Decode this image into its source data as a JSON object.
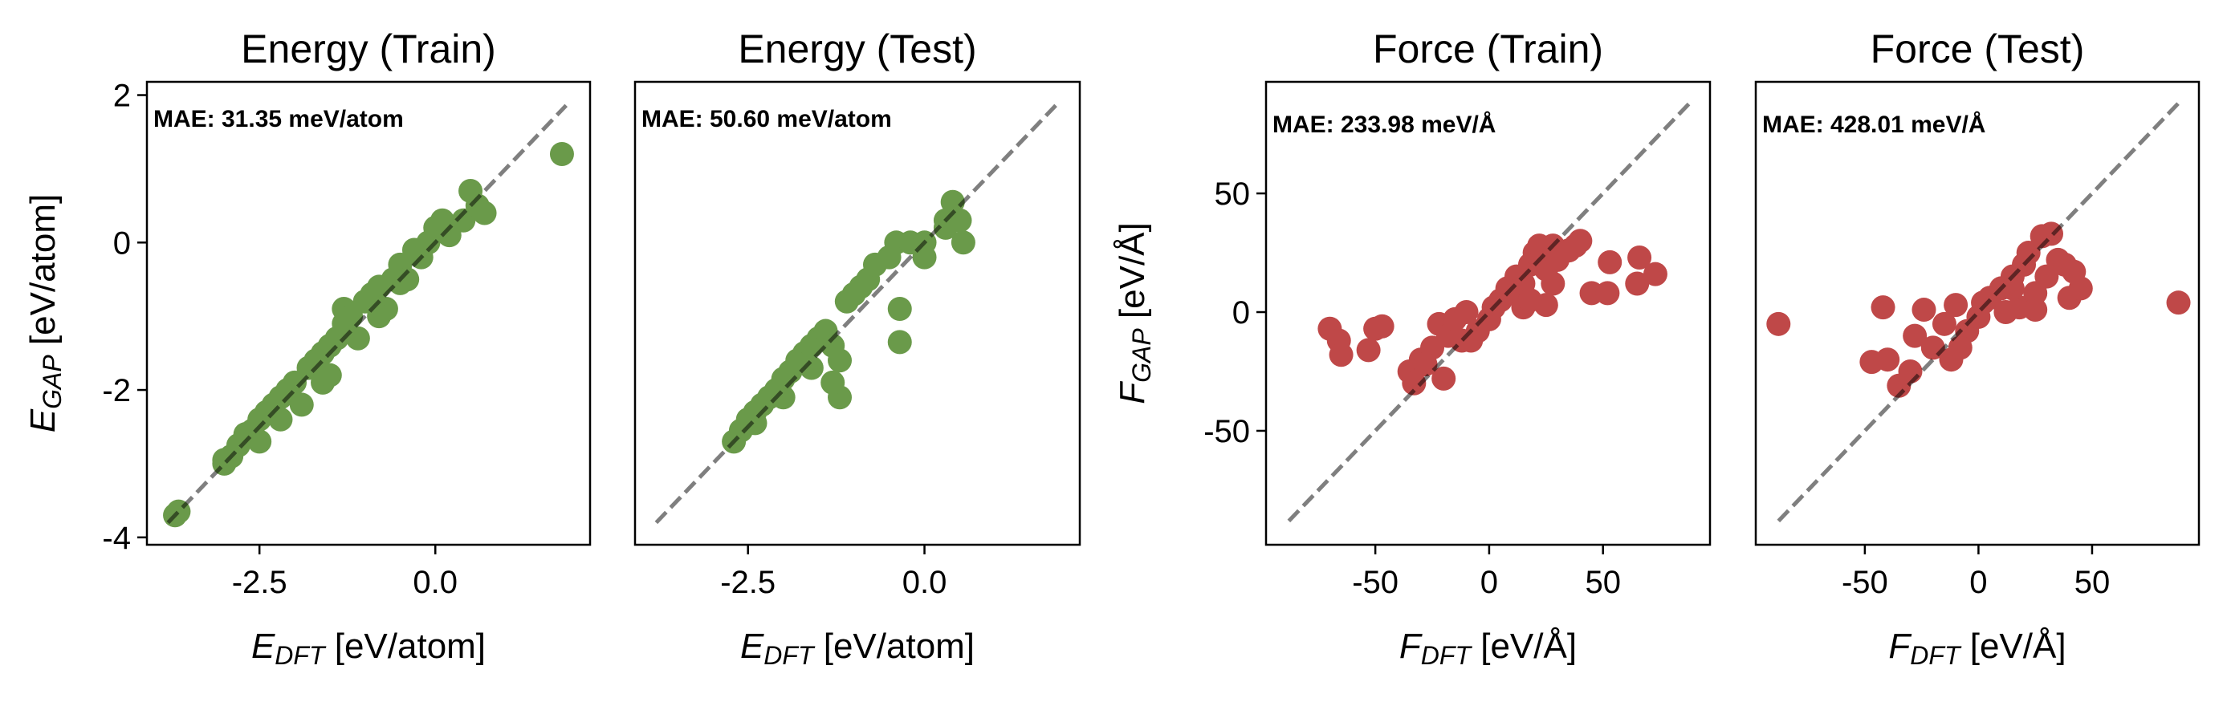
{
  "chart_data": [
    {
      "type": "scatter",
      "title": "Energy (Train)",
      "annotation": "MAE: 31.35 meV/atom",
      "xlabel": {
        "symbol": "E",
        "sub": "DFT",
        "unit": " [eV/atom]"
      },
      "ylabel": {
        "symbol": "E",
        "sub": "GAP",
        "unit": " [eV/atom]"
      },
      "xlim": [
        -4.1,
        2.2
      ],
      "ylim": [
        -4.1,
        2.18
      ],
      "xticks": [
        -2.5,
        0.0
      ],
      "xtick_labels": [
        "-2.5",
        "0.0"
      ],
      "yticks": [
        2,
        0,
        -2,
        -4
      ],
      "ytick_labels": [
        "2",
        "0",
        "-2",
        "-4"
      ],
      "show_yticks": true,
      "diagonal": [
        -3.8,
        1.86
      ],
      "color": "#6a9a4a",
      "points": [
        [
          -3.7,
          -3.7
        ],
        [
          -3.65,
          -3.65
        ],
        [
          -3.0,
          -3.0
        ],
        [
          -2.9,
          -2.9
        ],
        [
          -2.8,
          -2.75
        ],
        [
          -2.7,
          -2.6
        ],
        [
          -2.6,
          -2.55
        ],
        [
          -2.5,
          -2.4
        ],
        [
          -2.4,
          -2.3
        ],
        [
          -2.3,
          -2.2
        ],
        [
          -2.2,
          -2.1
        ],
        [
          -2.1,
          -2.0
        ],
        [
          -2.0,
          -1.9
        ],
        [
          -1.9,
          -2.2
        ],
        [
          -2.2,
          -2.4
        ],
        [
          -1.8,
          -1.7
        ],
        [
          -1.7,
          -1.6
        ],
        [
          -1.6,
          -1.5
        ],
        [
          -1.6,
          -1.9
        ],
        [
          -1.5,
          -1.4
        ],
        [
          -1.4,
          -1.3
        ],
        [
          -1.3,
          -1.1
        ],
        [
          -1.3,
          -0.9
        ],
        [
          -1.2,
          -1.0
        ],
        [
          -1.1,
          -1.3
        ],
        [
          -1.0,
          -0.8
        ],
        [
          -0.9,
          -0.7
        ],
        [
          -0.8,
          -0.6
        ],
        [
          -0.7,
          -0.9
        ],
        [
          -0.6,
          -0.5
        ],
        [
          -0.5,
          -0.3
        ],
        [
          -0.4,
          -0.5
        ],
        [
          -0.3,
          -0.1
        ],
        [
          -0.2,
          -0.2
        ],
        [
          -0.1,
          0.0
        ],
        [
          0.0,
          0.2
        ],
        [
          0.1,
          0.3
        ],
        [
          0.2,
          0.1
        ],
        [
          0.4,
          0.3
        ],
        [
          0.5,
          0.7
        ],
        [
          0.6,
          0.5
        ],
        [
          0.7,
          0.4
        ],
        [
          1.8,
          1.2
        ],
        [
          -3.0,
          -2.95
        ],
        [
          -1.5,
          -1.8
        ],
        [
          -2.5,
          -2.7
        ],
        [
          -0.8,
          -1.0
        ],
        [
          -0.5,
          -0.55
        ]
      ]
    },
    {
      "type": "scatter",
      "title": "Energy (Test)",
      "annotation": "MAE: 50.60 meV/atom",
      "xlabel": {
        "symbol": "E",
        "sub": "DFT",
        "unit": " [eV/atom]"
      },
      "xlim": [
        -4.1,
        2.2
      ],
      "ylim": [
        -4.1,
        2.18
      ],
      "xticks": [
        -2.5,
        0.0
      ],
      "xtick_labels": [
        "-2.5",
        "0.0"
      ],
      "yticks": [],
      "ytick_labels": [],
      "show_yticks": false,
      "diagonal": [
        -3.8,
        1.86
      ],
      "color": "#6a9a4a",
      "points": [
        [
          -2.7,
          -2.7
        ],
        [
          -2.6,
          -2.55
        ],
        [
          -2.5,
          -2.4
        ],
        [
          -2.4,
          -2.3
        ],
        [
          -2.3,
          -2.2
        ],
        [
          -2.2,
          -2.1
        ],
        [
          -2.1,
          -2.0
        ],
        [
          -2.0,
          -1.85
        ],
        [
          -1.9,
          -1.75
        ],
        [
          -1.8,
          -1.6
        ],
        [
          -1.7,
          -1.5
        ],
        [
          -1.6,
          -1.4
        ],
        [
          -1.5,
          -1.3
        ],
        [
          -1.4,
          -1.2
        ],
        [
          -1.3,
          -1.4
        ],
        [
          -1.2,
          -1.6
        ],
        [
          -1.2,
          -2.1
        ],
        [
          -1.3,
          -1.9
        ],
        [
          -1.1,
          -0.8
        ],
        [
          -1.0,
          -0.7
        ],
        [
          -0.9,
          -0.6
        ],
        [
          -0.8,
          -0.5
        ],
        [
          -0.7,
          -0.3
        ],
        [
          -0.5,
          -0.2
        ],
        [
          -0.35,
          -0.9
        ],
        [
          -0.35,
          -1.35
        ],
        [
          -0.4,
          0.0
        ],
        [
          -0.2,
          0.0
        ],
        [
          0.0,
          0.0
        ],
        [
          0.0,
          -0.2
        ],
        [
          0.3,
          0.3
        ],
        [
          0.4,
          0.55
        ],
        [
          0.5,
          0.3
        ],
        [
          0.55,
          0.0
        ],
        [
          0.3,
          0.2
        ],
        [
          -2.0,
          -2.1
        ],
        [
          -1.6,
          -1.7
        ],
        [
          -2.4,
          -2.45
        ]
      ]
    },
    {
      "type": "scatter",
      "title": "Force (Train)",
      "annotation": "MAE: 233.98 meV/Å",
      "xlabel": {
        "symbol": "F",
        "sub": "DFT",
        "unit": " [eV/Å]"
      },
      "ylabel": {
        "symbol": "F",
        "sub": "GAP",
        "unit": " [eV/Å]"
      },
      "xlim": [
        -98,
        97
      ],
      "ylim": [
        -98,
        97
      ],
      "xticks": [
        -50,
        0,
        50
      ],
      "xtick_labels": [
        "-50",
        "0",
        "50"
      ],
      "yticks": [
        50,
        0,
        -50
      ],
      "ytick_labels": [
        "50",
        "0",
        "-50"
      ],
      "show_yticks": true,
      "diagonal": [
        -88,
        88
      ],
      "color": "#bf4848",
      "points": [
        [
          -70,
          -7
        ],
        [
          -66,
          -12
        ],
        [
          -65,
          -18
        ],
        [
          -53,
          -16
        ],
        [
          -50,
          -7
        ],
        [
          -47,
          -6
        ],
        [
          -35,
          -25
        ],
        [
          -33,
          -30
        ],
        [
          -30,
          -20
        ],
        [
          -25,
          -15
        ],
        [
          -22,
          -5
        ],
        [
          -20,
          -28
        ],
        [
          -18,
          -10
        ],
        [
          -15,
          -3
        ],
        [
          -12,
          -12
        ],
        [
          -10,
          0
        ],
        [
          -5,
          -8
        ],
        [
          0,
          -3
        ],
        [
          2,
          2
        ],
        [
          5,
          5
        ],
        [
          8,
          10
        ],
        [
          10,
          8
        ],
        [
          12,
          15
        ],
        [
          15,
          12
        ],
        [
          15,
          2
        ],
        [
          18,
          20
        ],
        [
          20,
          25
        ],
        [
          22,
          28
        ],
        [
          25,
          18
        ],
        [
          25,
          3
        ],
        [
          28,
          28
        ],
        [
          30,
          22
        ],
        [
          35,
          26
        ],
        [
          38,
          28
        ],
        [
          40,
          30
        ],
        [
          45,
          8
        ],
        [
          52,
          8
        ],
        [
          53,
          21
        ],
        [
          65,
          12
        ],
        [
          66,
          23
        ],
        [
          73,
          16
        ],
        [
          -28,
          -22
        ],
        [
          -8,
          -12
        ],
        [
          18,
          5
        ],
        [
          28,
          12
        ]
      ]
    },
    {
      "type": "scatter",
      "title": "Force (Test)",
      "annotation": "MAE: 428.01 meV/Å",
      "xlabel": {
        "symbol": "F",
        "sub": "DFT",
        "unit": " [eV/Å]"
      },
      "xlim": [
        -98,
        97
      ],
      "ylim": [
        -98,
        97
      ],
      "xticks": [
        -50,
        0,
        50
      ],
      "xtick_labels": [
        "-50",
        "0",
        "50"
      ],
      "yticks": [],
      "ytick_labels": [],
      "show_yticks": false,
      "diagonal": [
        -88,
        88
      ],
      "color": "#bf4848",
      "points": [
        [
          -88,
          -5
        ],
        [
          -42,
          2
        ],
        [
          -47,
          -21
        ],
        [
          -40,
          -20
        ],
        [
          -35,
          -31
        ],
        [
          -30,
          -25
        ],
        [
          -28,
          -10
        ],
        [
          -24,
          1
        ],
        [
          -20,
          -15
        ],
        [
          -15,
          -5
        ],
        [
          -12,
          -20
        ],
        [
          -10,
          3
        ],
        [
          -5,
          -8
        ],
        [
          0,
          -2
        ],
        [
          2,
          4
        ],
        [
          5,
          6
        ],
        [
          10,
          10
        ],
        [
          12,
          0
        ],
        [
          15,
          15
        ],
        [
          18,
          2
        ],
        [
          20,
          20
        ],
        [
          22,
          25
        ],
        [
          25,
          8
        ],
        [
          25,
          1
        ],
        [
          28,
          32
        ],
        [
          32,
          33
        ],
        [
          35,
          22
        ],
        [
          38,
          20
        ],
        [
          42,
          17
        ],
        [
          40,
          6
        ],
        [
          45,
          10
        ],
        [
          88,
          4
        ],
        [
          -8,
          -15
        ],
        [
          15,
          10
        ],
        [
          30,
          15
        ]
      ]
    }
  ]
}
